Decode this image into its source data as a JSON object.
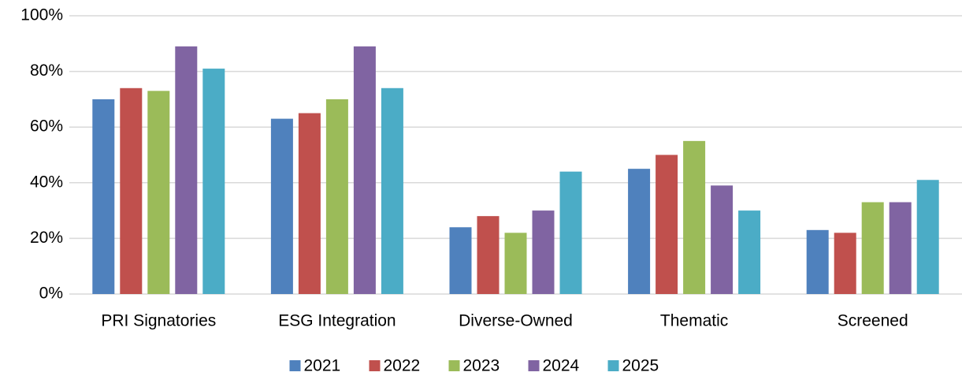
{
  "chart_data": {
    "type": "bar",
    "categories": [
      "PRI Signatories",
      "ESG Integration",
      "Diverse-Owned",
      "Thematic",
      "Screened"
    ],
    "series": [
      {
        "name": "2021",
        "color": "#4f81bd",
        "values": [
          70,
          63,
          24,
          45,
          23
        ]
      },
      {
        "name": "2022",
        "color": "#c0504d",
        "values": [
          74,
          65,
          28,
          50,
          22
        ]
      },
      {
        "name": "2023",
        "color": "#9bbb59",
        "values": [
          73,
          70,
          22,
          55,
          33
        ]
      },
      {
        "name": "2024",
        "color": "#8064a2",
        "values": [
          89,
          89,
          30,
          39,
          33
        ]
      },
      {
        "name": "2025",
        "color": "#4bacc6",
        "values": [
          81,
          74,
          44,
          30,
          41
        ]
      }
    ],
    "ylim": [
      0,
      100
    ],
    "yticks": [
      {
        "value": 0,
        "label": "0%"
      },
      {
        "value": 20,
        "label": "20%"
      },
      {
        "value": 40,
        "label": "40%"
      },
      {
        "value": 60,
        "label": "60%"
      },
      {
        "value": 80,
        "label": "80%"
      },
      {
        "value": 100,
        "label": "100%"
      }
    ],
    "grid": true,
    "legend": "bottom"
  }
}
